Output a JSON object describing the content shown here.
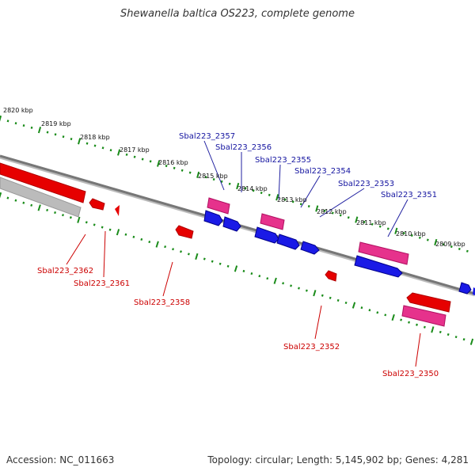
{
  "title": "Shewanella baltica OS223, complete genome",
  "footer": {
    "accession": "Accession: NC_011663",
    "summary": "Topology: circular; Length: 5,145,902 bp; Genes: 4,281"
  },
  "colors": {
    "backbone": "#777777",
    "tick": "#1a8c1a",
    "forward_cds": "#1a1ae6",
    "reverse_cds": "#e60000",
    "pink_cds": "#e6328c",
    "grey_feature": "#bbbbbb",
    "forward_label": "#1414a0",
    "reverse_label": "#cc0000"
  },
  "position_labels": [
    "2820 kbp",
    "2819 kbp",
    "2818 kbp",
    "2817 kbp",
    "2816 kbp",
    "2815 kbp",
    "2814 kbp",
    "2813 kbp",
    "2812 kbp",
    "2811 kbp",
    "2810 kbp",
    "2809 kbp"
  ],
  "forward_gene_labels": [
    "Sbal223_2357",
    "Sbal223_2356",
    "Sbal223_2355",
    "Sbal223_2354",
    "Sbal223_2353",
    "Sbal223_2351"
  ],
  "reverse_gene_labels": [
    "Sbal223_2362",
    "Sbal223_2361",
    "Sbal223_2358",
    "Sbal223_2352",
    "Sbal223_2350"
  ]
}
